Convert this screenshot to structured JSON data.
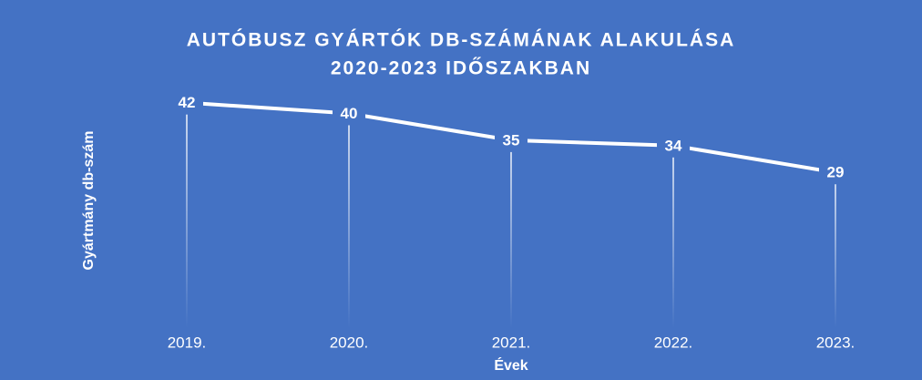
{
  "chart_data": {
    "type": "line",
    "title": [
      "AUTÓBUSZ GYÁRTÓK DB-SZÁMÁNAK ALAKULÁSA",
      "2020-2023 IDŐSZAKBAN"
    ],
    "x_label": "Évek",
    "y_label": "Gyártmány db-szám",
    "categories": [
      "2019.",
      "2020.",
      "2021.",
      "2022.",
      "2023."
    ],
    "series": [
      {
        "name": "Gyártmány db-szám",
        "color": "#ffffff",
        "values": [
          42,
          40,
          35,
          34,
          29
        ]
      }
    ],
    "ylim": [
      0,
      45
    ],
    "drop_lines": true,
    "background": "#4472c4"
  }
}
